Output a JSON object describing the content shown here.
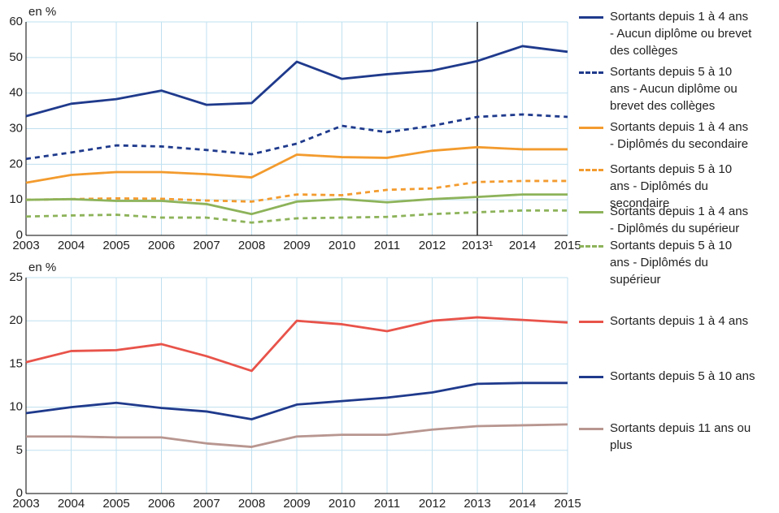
{
  "chart_data": [
    {
      "type": "line",
      "unit_label": "en %",
      "categories": [
        "2003",
        "2004",
        "2005",
        "2006",
        "2007",
        "2008",
        "2009",
        "2010",
        "2011",
        "2012",
        "2013¹",
        "2014",
        "2015"
      ],
      "vline": "2013¹",
      "ylim": [
        0,
        60
      ],
      "yticks": [
        0,
        10,
        20,
        30,
        40,
        50,
        60
      ],
      "grid": true,
      "series": [
        {
          "name": "Sortants depuis 1 à 4 ans - Aucun diplôme ou brevet des collèges",
          "color": "#1f3a8c",
          "dashed": false,
          "values": [
            33.5,
            37,
            38.3,
            40.7,
            36.7,
            37.2,
            48.8,
            44,
            45.3,
            46.3,
            49,
            53.2,
            51.6
          ]
        },
        {
          "name": "Sortants depuis 5 à 10 ans - Aucun diplôme ou brevet des collèges",
          "color": "#1f3a8c",
          "dashed": true,
          "values": [
            21.5,
            23.3,
            25.3,
            25,
            24,
            22.8,
            25.8,
            30.8,
            29,
            30.8,
            33.3,
            34,
            33.3
          ]
        },
        {
          "name": "Sortants depuis 1 à 4 ans - Diplômés du secondaire",
          "color": "#f39b2e",
          "dashed": false,
          "values": [
            14.8,
            17,
            17.8,
            17.8,
            17.2,
            16.3,
            22.7,
            22,
            21.8,
            23.8,
            24.8,
            24.2,
            24.2
          ]
        },
        {
          "name": "Sortants depuis 5 à 10 ans - Diplômés du secondaire",
          "color": "#f39b2e",
          "dashed": true,
          "values": [
            10,
            10.2,
            10.4,
            10.3,
            9.8,
            9.5,
            11.5,
            11.3,
            12.8,
            13.2,
            15,
            15.3,
            15.3
          ]
        },
        {
          "name": "Sortants depuis 1 à 4 ans - Diplômés du supérieur",
          "color": "#8db35a",
          "dashed": false,
          "values": [
            10,
            10.2,
            9.7,
            9.7,
            8.8,
            6,
            9.5,
            10.2,
            9.3,
            10.2,
            10.8,
            11.5,
            11.5
          ]
        },
        {
          "name": "Sortants depuis 5 à 10 ans - Diplômés du supérieur",
          "color": "#8db35a",
          "dashed": true,
          "values": [
            5.3,
            5.6,
            5.8,
            5,
            5,
            3.6,
            4.8,
            5,
            5.2,
            6,
            6.5,
            7,
            7
          ]
        }
      ]
    },
    {
      "type": "line",
      "unit_label": "en %",
      "categories": [
        "2003",
        "2004",
        "2005",
        "2006",
        "2007",
        "2008",
        "2009",
        "2010",
        "2011",
        "2012",
        "2013",
        "2014",
        "2015"
      ],
      "ylim": [
        0,
        25
      ],
      "yticks": [
        0,
        5,
        10,
        15,
        20,
        25
      ],
      "grid": true,
      "series": [
        {
          "name": "Sortants depuis 1 à 4 ans",
          "color": "#e8534a",
          "dashed": false,
          "values": [
            15.2,
            16.5,
            16.6,
            17.3,
            15.9,
            14.2,
            20,
            19.6,
            18.8,
            20,
            20.4,
            20.1,
            19.8
          ]
        },
        {
          "name": "Sortants depuis 5 à 10 ans",
          "color": "#1f3a8c",
          "dashed": false,
          "values": [
            9.3,
            10,
            10.5,
            9.9,
            9.5,
            8.6,
            10.3,
            10.7,
            11.1,
            11.7,
            12.7,
            12.8,
            12.8
          ]
        },
        {
          "name": "Sortants depuis 11 ans ou plus",
          "color": "#b89690",
          "dashed": false,
          "values": [
            6.6,
            6.6,
            6.5,
            6.5,
            5.8,
            5.4,
            6.6,
            6.8,
            6.8,
            7.4,
            7.8,
            7.9,
            8
          ]
        }
      ]
    }
  ]
}
